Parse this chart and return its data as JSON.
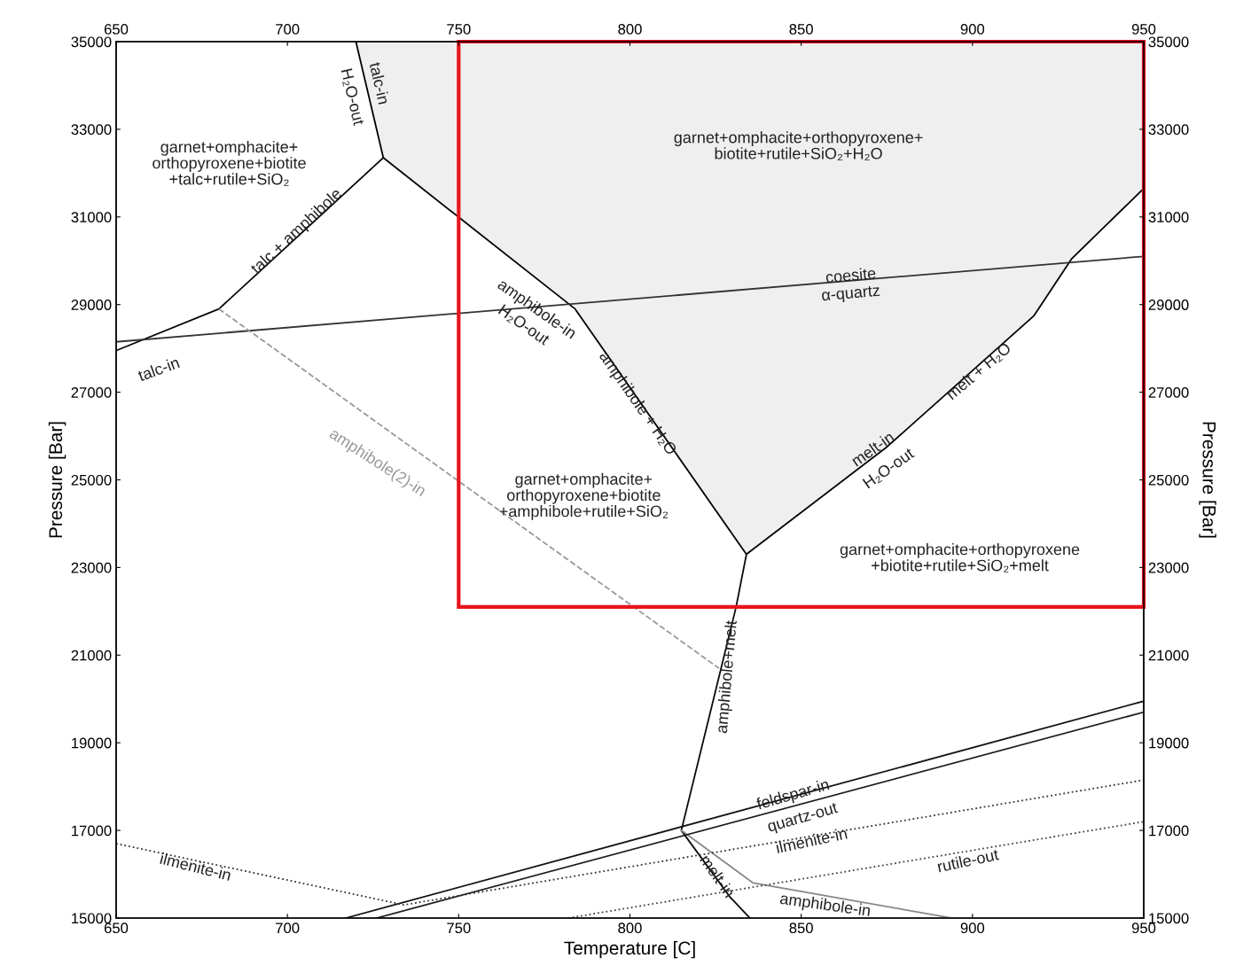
{
  "chart_data": {
    "type": "line",
    "xlabel": "Temperature [C]",
    "ylabel": "Pressure [Bar]",
    "y2label": "Pressure [Bar]",
    "xlim": [
      650,
      950
    ],
    "xticks": [
      650,
      700,
      750,
      800,
      850,
      900,
      950
    ],
    "x2lim": [
      650,
      950
    ],
    "x2ticks": [
      650,
      700,
      750,
      800,
      850,
      900,
      950
    ],
    "ylim": [
      15000,
      35000
    ],
    "yticks": [
      15000,
      17000,
      19000,
      21000,
      23000,
      25000,
      27000,
      29000,
      31000,
      33000,
      35000
    ],
    "y2lim": [
      15000,
      35000
    ],
    "y2ticks": [
      15000,
      17000,
      19000,
      21000,
      23000,
      25000,
      27000,
      29000,
      31000,
      33000,
      35000
    ],
    "series": [
      {
        "type": "area",
        "color": "#efefef",
        "x": [
          720,
          728,
          784,
          834,
          875,
          918,
          929,
          950,
          950
        ],
        "values": [
          35000,
          32350,
          28900,
          23300,
          25750,
          28750,
          30050,
          31650,
          35000
        ]
      },
      {
        "color": "#050505",
        "x": [
          650,
          680,
          728
        ],
        "values": [
          27950,
          28900,
          32350
        ]
      },
      {
        "color": "#333333",
        "x": [
          650,
          950
        ],
        "values": [
          28150,
          30100
        ]
      },
      {
        "color": "#999999",
        "line_style": "dashed",
        "x": [
          680,
          826
        ],
        "values": [
          28900,
          20700
        ]
      },
      {
        "color": "#0a0a0a",
        "x": [
          834,
          831,
          815,
          829,
          835
        ],
        "values": [
          23300,
          22100,
          17000,
          15500,
          15000
        ]
      },
      {
        "color": "#888888",
        "x": [
          815,
          836,
          894
        ],
        "values": [
          17000,
          15800,
          15000
        ]
      },
      {
        "color": "#141414",
        "x": [
          717,
          950
        ],
        "values": [
          15000,
          19950
        ]
      },
      {
        "color": "#1e1e1e",
        "x": [
          726,
          950
        ],
        "values": [
          15000,
          19700
        ]
      },
      {
        "color": "#333333",
        "line_style": "dotted",
        "x": [
          650,
          734,
          950
        ],
        "values": [
          16700,
          15300,
          18150
        ]
      },
      {
        "color": "#444444",
        "line_style": "dotted",
        "x": [
          782,
          950
        ],
        "values": [
          15000,
          17200
        ]
      }
    ],
    "annotations": [
      "talc-in",
      "H₂O-out",
      "garnet+omphacite+\northopyroxene+biotite\n+talc+rutile+SiO₂",
      "talc + amphibole",
      "talc-in",
      "amphibole-in",
      "H₂O-out",
      "coesite",
      "α-quartz",
      "garnet+omphacite+orthopyroxene+\nbiotite+rutile+SiO₂+H₂O",
      "amphibole(2)-in",
      "amphibole + H₂O",
      "melt + H₂O",
      "melt-in",
      "H₂O-out",
      "garnet+omphacite+\northopyroxene+biotite\n+amphibole+rutile+SiO₂",
      "garnet+omphacite+orthopyroxene\n+biotite+rutile+SiO₂+melt",
      "amphibole+melt",
      "feldspar-in",
      "quartz-out",
      "ilmenite-in",
      "rutile-out",
      "ilmenite-in",
      "melt-in",
      "amphibole-in"
    ]
  }
}
